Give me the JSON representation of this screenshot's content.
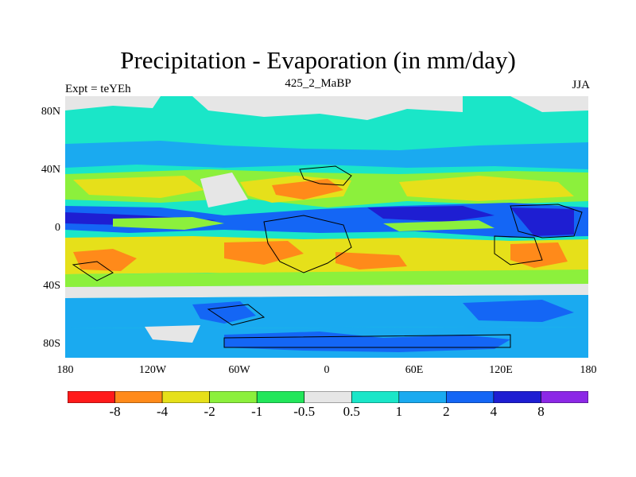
{
  "title": "Precipitation - Evaporation (in mm/day)",
  "experiment_label": "Expt = teYEh",
  "case_label": "425_2_MaBP",
  "season_label": "JJA",
  "lat_ticks": [
    "80N",
    "40N",
    "0",
    "40S",
    "80S"
  ],
  "lon_ticks": [
    "180",
    "120W",
    "60W",
    "0",
    "60E",
    "120E",
    "180"
  ],
  "colorbar": {
    "colors": [
      "#ff1a1a",
      "#ff8a1a",
      "#e6e01a",
      "#8cf03c",
      "#22e65a",
      "#e6e6e6",
      "#1ae6c8",
      "#1aaaf0",
      "#1466f5",
      "#1e1ed2",
      "#8c28e6"
    ],
    "labels": [
      "-8",
      "-4",
      "-2",
      "-1",
      "-0.5",
      "0.5",
      "1",
      "2",
      "4",
      "8"
    ]
  }
}
